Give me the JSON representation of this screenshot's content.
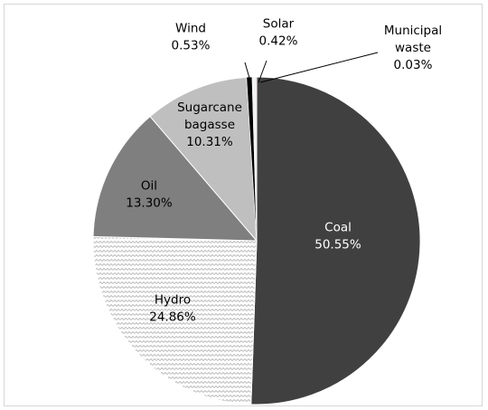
{
  "chart_data": {
    "type": "pie",
    "title": "",
    "start_angle_deg": 0,
    "direction": "clockwise",
    "legend": "none",
    "slices": [
      {
        "name": "Coal",
        "value": 50.55,
        "label_value": "50.55%",
        "color": "#404040",
        "pattern": "solid",
        "label_color": "#ffffff"
      },
      {
        "name": "Hydro",
        "value": 24.86,
        "label_value": "24.86%",
        "color": "#ffffff",
        "pattern": "zigzag",
        "label_color": "#000000"
      },
      {
        "name": "Oil",
        "value": 13.3,
        "label_value": "13.30%",
        "color": "#7f7f7f",
        "pattern": "solid",
        "label_color": "#000000"
      },
      {
        "name": "Sugarcane bagasse",
        "lines": [
          "Sugarcane",
          "bagasse"
        ],
        "value": 10.31,
        "label_value": "10.31%",
        "color": "#bfbfbf",
        "pattern": "solid",
        "label_color": "#000000"
      },
      {
        "name": "Wind",
        "value": 0.53,
        "label_value": "0.53%",
        "color": "#000000",
        "pattern": "solid",
        "label_color": "#000000"
      },
      {
        "name": "Solar",
        "value": 0.42,
        "label_value": "0.42%",
        "color": "#f2f2f2",
        "pattern": "solid",
        "label_color": "#000000"
      },
      {
        "name": "Municipal waste",
        "lines": [
          "Municipal",
          "waste"
        ],
        "value": 0.03,
        "label_value": "0.03%",
        "color": "#c00000",
        "pattern": "solid",
        "label_color": "#000000"
      }
    ]
  }
}
